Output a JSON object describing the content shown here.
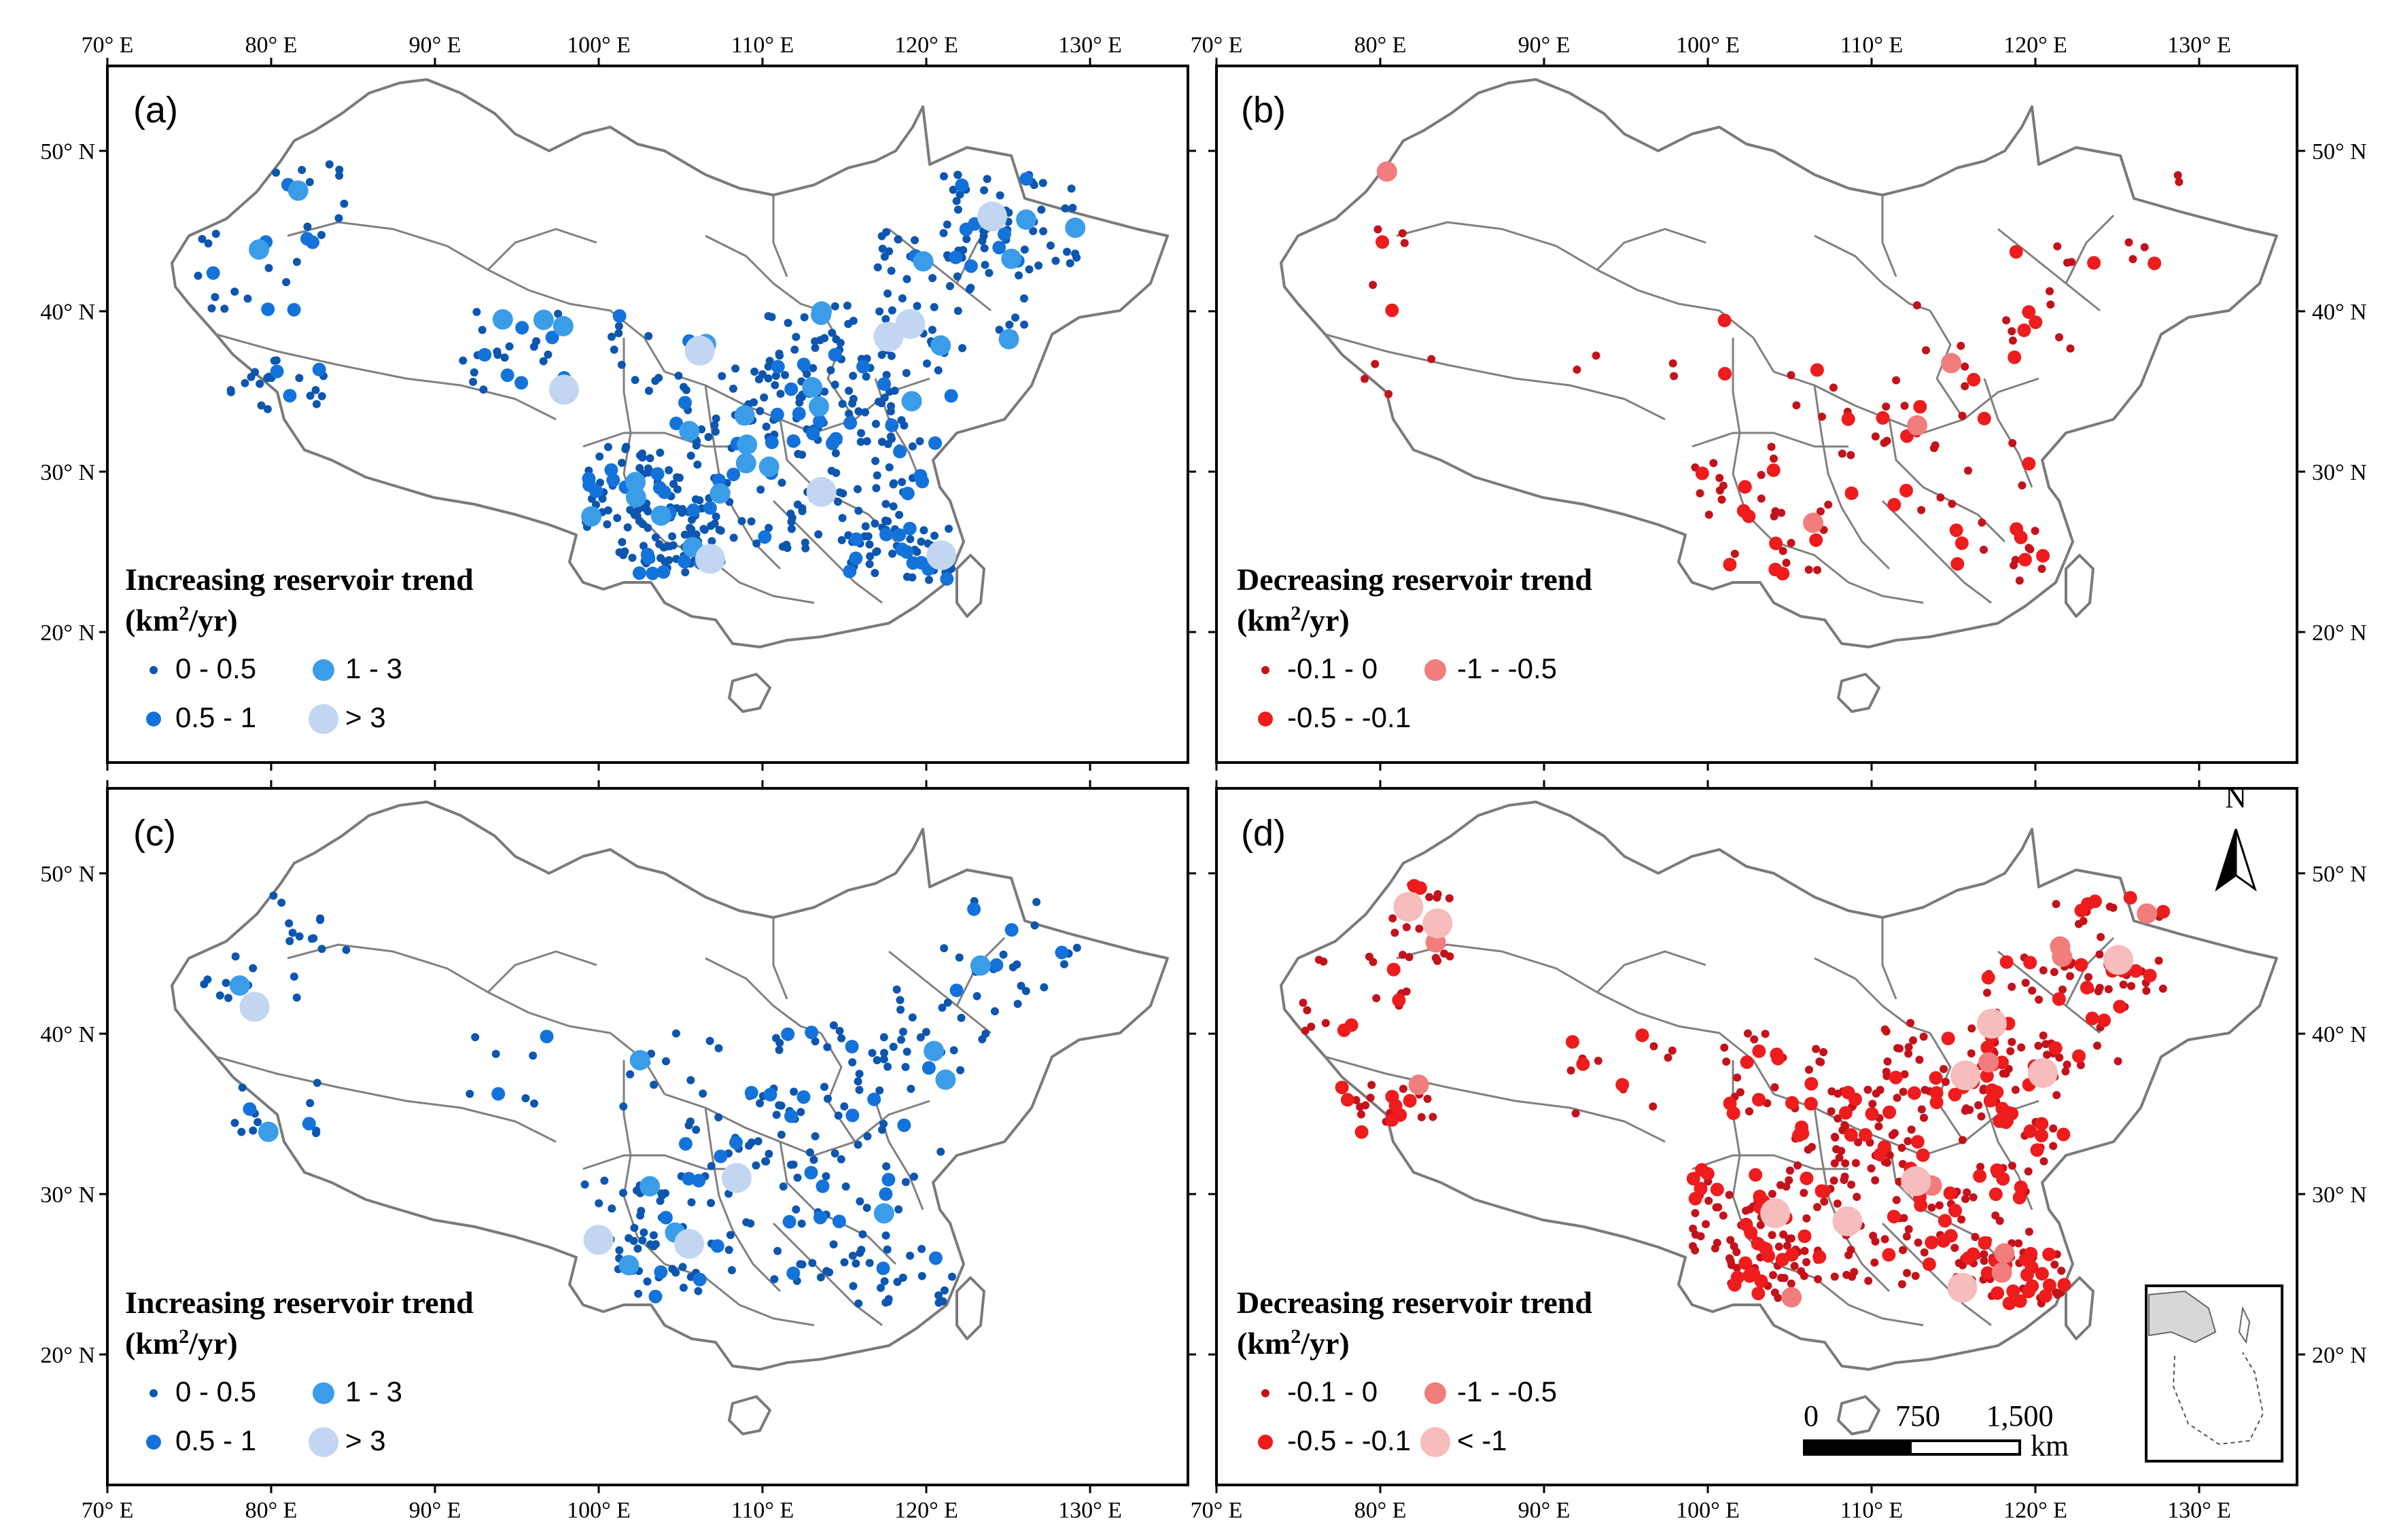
{
  "figure": {
    "x_ticks": [
      "70° E",
      "80° E",
      "90° E",
      "100° E",
      "110° E",
      "120° E",
      "130° E"
    ],
    "y_ticks": [
      "50° N",
      "40° N",
      "30° N",
      "20° N"
    ],
    "units_line": [
      "(km",
      "2",
      "/yr)"
    ]
  },
  "panels": [
    {
      "id": "a",
      "label": "(a)",
      "title": "Increasing reservoir trend",
      "legend": [
        {
          "label": "0 - 0.5",
          "color": "#0d56b0",
          "size": "small"
        },
        {
          "label": "1 - 3",
          "color": "#3b9de8",
          "size": "large"
        },
        {
          "label": "0.5 - 1",
          "color": "#1373db",
          "size": "medium"
        },
        {
          "label": "> 3",
          "color": "#c2d6f2",
          "size": "xlarge"
        }
      ]
    },
    {
      "id": "b",
      "label": "(b)",
      "title": "Decreasing reservoir trend",
      "legend": [
        {
          "label": "-0.1 - 0",
          "color": "#c4121a",
          "size": "small"
        },
        {
          "label": "-1 - -0.5",
          "color": "#f27d7d",
          "size": "large"
        },
        {
          "label": "-0.5 - -0.1",
          "color": "#ee1c1c",
          "size": "medium"
        }
      ]
    },
    {
      "id": "c",
      "label": "(c)",
      "title": "Increasing reservoir trend",
      "legend": [
        {
          "label": "0 - 0.5",
          "color": "#0d56b0",
          "size": "small"
        },
        {
          "label": "1 - 3",
          "color": "#3b9de8",
          "size": "large"
        },
        {
          "label": "0.5 - 1",
          "color": "#1373db",
          "size": "medium"
        },
        {
          "label": "> 3",
          "color": "#c2d6f2",
          "size": "xlarge"
        }
      ]
    },
    {
      "id": "d",
      "label": "(d)",
      "title": "Decreasing reservoir trend",
      "legend": [
        {
          "label": "-0.1 - 0",
          "color": "#c4121a",
          "size": "small"
        },
        {
          "label": "-1 - -0.5",
          "color": "#f27d7d",
          "size": "large"
        },
        {
          "label": "-0.5 - -0.1",
          "color": "#ee1c1c",
          "size": "medium"
        },
        {
          "label": "< -1",
          "color": "#f7bcbc",
          "size": "xlarge"
        }
      ]
    }
  ],
  "north_arrow": "N",
  "scale_bar": {
    "labels": [
      "0",
      "750",
      "1,500"
    ],
    "unit": "km"
  },
  "legend_colors": {
    "increase": [
      "#0d56b0",
      "#1373db",
      "#3b9de8",
      "#c2d6f2"
    ],
    "decrease": [
      "#c4121a",
      "#ee1c1c",
      "#f27d7d",
      "#f7bcbc"
    ]
  }
}
